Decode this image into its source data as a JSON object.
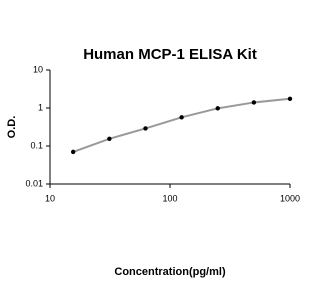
{
  "chart_data": {
    "type": "scatter",
    "title": "Human MCP-1 ELISA Kit",
    "x_label": "Concentration(pg/ml)",
    "y_label": "O.D.",
    "x_scale": "log",
    "y_scale": "log",
    "xlim": [
      10,
      1000
    ],
    "xticks": [
      10,
      100,
      1000
    ],
    "ylim": [
      0.01,
      10
    ],
    "yticks": [
      0.01,
      0.1,
      1,
      10
    ],
    "series": [
      {
        "color": "#000000",
        "x": [
          15.6,
          31.25,
          62.5,
          125,
          250,
          500,
          1000
        ],
        "values": [
          0.07,
          0.155,
          0.29,
          0.57,
          0.98,
          1.4,
          1.75
        ]
      }
    ]
  }
}
